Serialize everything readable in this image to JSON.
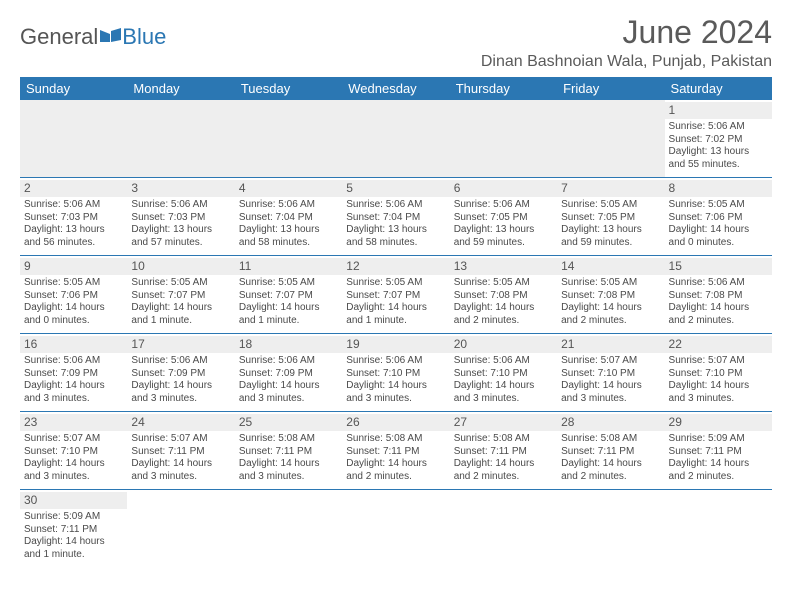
{
  "logo": {
    "general": "General",
    "blue": "Blue"
  },
  "title": "June 2024",
  "location": "Dinan Bashnoian Wala, Punjab, Pakistan",
  "colors": {
    "header_bg": "#2b77b3",
    "header_fg": "#ffffff",
    "daybar_bg": "#eeeeee",
    "text": "#4a4a4a",
    "rule": "#2b77b3"
  },
  "fonts": {
    "title_pt": 32,
    "location_pt": 16,
    "weekday_pt": 13,
    "cell_pt": 10,
    "daynum_pt": 12
  },
  "weekdays": [
    "Sunday",
    "Monday",
    "Tuesday",
    "Wednesday",
    "Thursday",
    "Friday",
    "Saturday"
  ],
  "layout": {
    "first_weekday_index": 6,
    "days_in_month": 30,
    "columns": 7
  },
  "days": {
    "1": {
      "sunrise": "5:06 AM",
      "sunset": "7:02 PM",
      "daylight": "13 hours and 55 minutes."
    },
    "2": {
      "sunrise": "5:06 AM",
      "sunset": "7:03 PM",
      "daylight": "13 hours and 56 minutes."
    },
    "3": {
      "sunrise": "5:06 AM",
      "sunset": "7:03 PM",
      "daylight": "13 hours and 57 minutes."
    },
    "4": {
      "sunrise": "5:06 AM",
      "sunset": "7:04 PM",
      "daylight": "13 hours and 58 minutes."
    },
    "5": {
      "sunrise": "5:06 AM",
      "sunset": "7:04 PM",
      "daylight": "13 hours and 58 minutes."
    },
    "6": {
      "sunrise": "5:06 AM",
      "sunset": "7:05 PM",
      "daylight": "13 hours and 59 minutes."
    },
    "7": {
      "sunrise": "5:05 AM",
      "sunset": "7:05 PM",
      "daylight": "13 hours and 59 minutes."
    },
    "8": {
      "sunrise": "5:05 AM",
      "sunset": "7:06 PM",
      "daylight": "14 hours and 0 minutes."
    },
    "9": {
      "sunrise": "5:05 AM",
      "sunset": "7:06 PM",
      "daylight": "14 hours and 0 minutes."
    },
    "10": {
      "sunrise": "5:05 AM",
      "sunset": "7:07 PM",
      "daylight": "14 hours and 1 minute."
    },
    "11": {
      "sunrise": "5:05 AM",
      "sunset": "7:07 PM",
      "daylight": "14 hours and 1 minute."
    },
    "12": {
      "sunrise": "5:05 AM",
      "sunset": "7:07 PM",
      "daylight": "14 hours and 1 minute."
    },
    "13": {
      "sunrise": "5:05 AM",
      "sunset": "7:08 PM",
      "daylight": "14 hours and 2 minutes."
    },
    "14": {
      "sunrise": "5:05 AM",
      "sunset": "7:08 PM",
      "daylight": "14 hours and 2 minutes."
    },
    "15": {
      "sunrise": "5:06 AM",
      "sunset": "7:08 PM",
      "daylight": "14 hours and 2 minutes."
    },
    "16": {
      "sunrise": "5:06 AM",
      "sunset": "7:09 PM",
      "daylight": "14 hours and 3 minutes."
    },
    "17": {
      "sunrise": "5:06 AM",
      "sunset": "7:09 PM",
      "daylight": "14 hours and 3 minutes."
    },
    "18": {
      "sunrise": "5:06 AM",
      "sunset": "7:09 PM",
      "daylight": "14 hours and 3 minutes."
    },
    "19": {
      "sunrise": "5:06 AM",
      "sunset": "7:10 PM",
      "daylight": "14 hours and 3 minutes."
    },
    "20": {
      "sunrise": "5:06 AM",
      "sunset": "7:10 PM",
      "daylight": "14 hours and 3 minutes."
    },
    "21": {
      "sunrise": "5:07 AM",
      "sunset": "7:10 PM",
      "daylight": "14 hours and 3 minutes."
    },
    "22": {
      "sunrise": "5:07 AM",
      "sunset": "7:10 PM",
      "daylight": "14 hours and 3 minutes."
    },
    "23": {
      "sunrise": "5:07 AM",
      "sunset": "7:10 PM",
      "daylight": "14 hours and 3 minutes."
    },
    "24": {
      "sunrise": "5:07 AM",
      "sunset": "7:11 PM",
      "daylight": "14 hours and 3 minutes."
    },
    "25": {
      "sunrise": "5:08 AM",
      "sunset": "7:11 PM",
      "daylight": "14 hours and 3 minutes."
    },
    "26": {
      "sunrise": "5:08 AM",
      "sunset": "7:11 PM",
      "daylight": "14 hours and 2 minutes."
    },
    "27": {
      "sunrise": "5:08 AM",
      "sunset": "7:11 PM",
      "daylight": "14 hours and 2 minutes."
    },
    "28": {
      "sunrise": "5:08 AM",
      "sunset": "7:11 PM",
      "daylight": "14 hours and 2 minutes."
    },
    "29": {
      "sunrise": "5:09 AM",
      "sunset": "7:11 PM",
      "daylight": "14 hours and 2 minutes."
    },
    "30": {
      "sunrise": "5:09 AM",
      "sunset": "7:11 PM",
      "daylight": "14 hours and 1 minute."
    }
  },
  "labels": {
    "sunrise": "Sunrise:",
    "sunset": "Sunset:",
    "daylight": "Daylight:"
  }
}
